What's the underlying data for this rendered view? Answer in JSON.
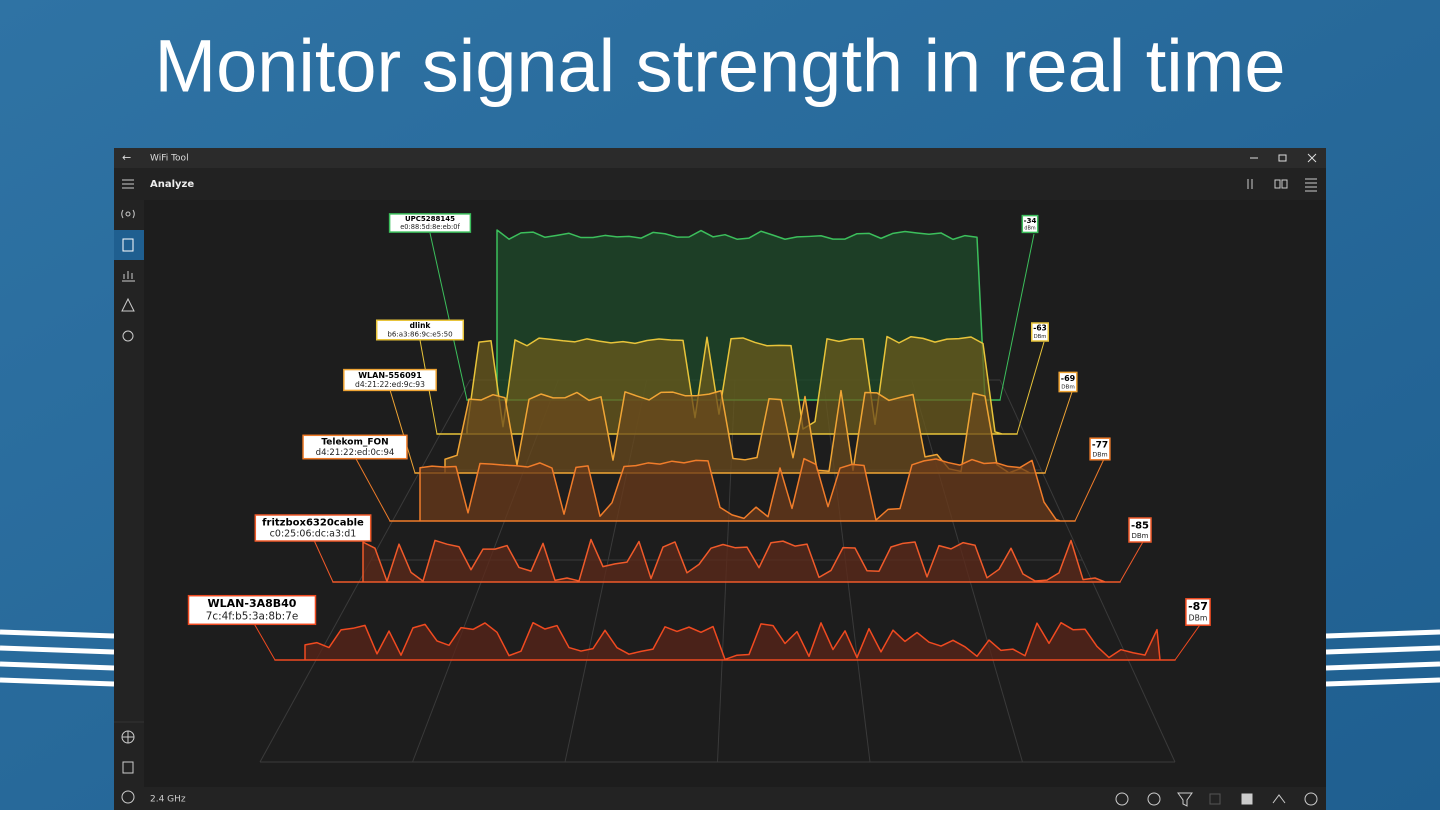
{
  "page_title": "Monitor signal strength in real time",
  "window": {
    "title": "WiFi Tool",
    "page": "Analyze",
    "band": "2.4 GHz"
  },
  "networks": [
    {
      "ssid": "UPC5288145",
      "mac": "e0:88:5d:8e:eb:0f",
      "dbm": -34,
      "unit": "dBm"
    },
    {
      "ssid": "dlink",
      "mac": "b6:a3:86:9c:e5:50",
      "dbm": -63,
      "unit": "DBm"
    },
    {
      "ssid": "WLAN-556091",
      "mac": "d4:21:22:ed:9c:93",
      "dbm": -69,
      "unit": "DBm"
    },
    {
      "ssid": "Telekom_FON",
      "mac": "d4:21:22:ed:0c:94",
      "dbm": -77,
      "unit": "DBm"
    },
    {
      "ssid": "fritzbox6320cable",
      "mac": "c0:25:06:dc:a3:d1",
      "dbm": -85,
      "unit": "DBm"
    },
    {
      "ssid": "WLAN-3A8B40",
      "mac": "7c:4f:b5:3a:8b:7e",
      "dbm": -87,
      "unit": "DBm"
    }
  ]
}
